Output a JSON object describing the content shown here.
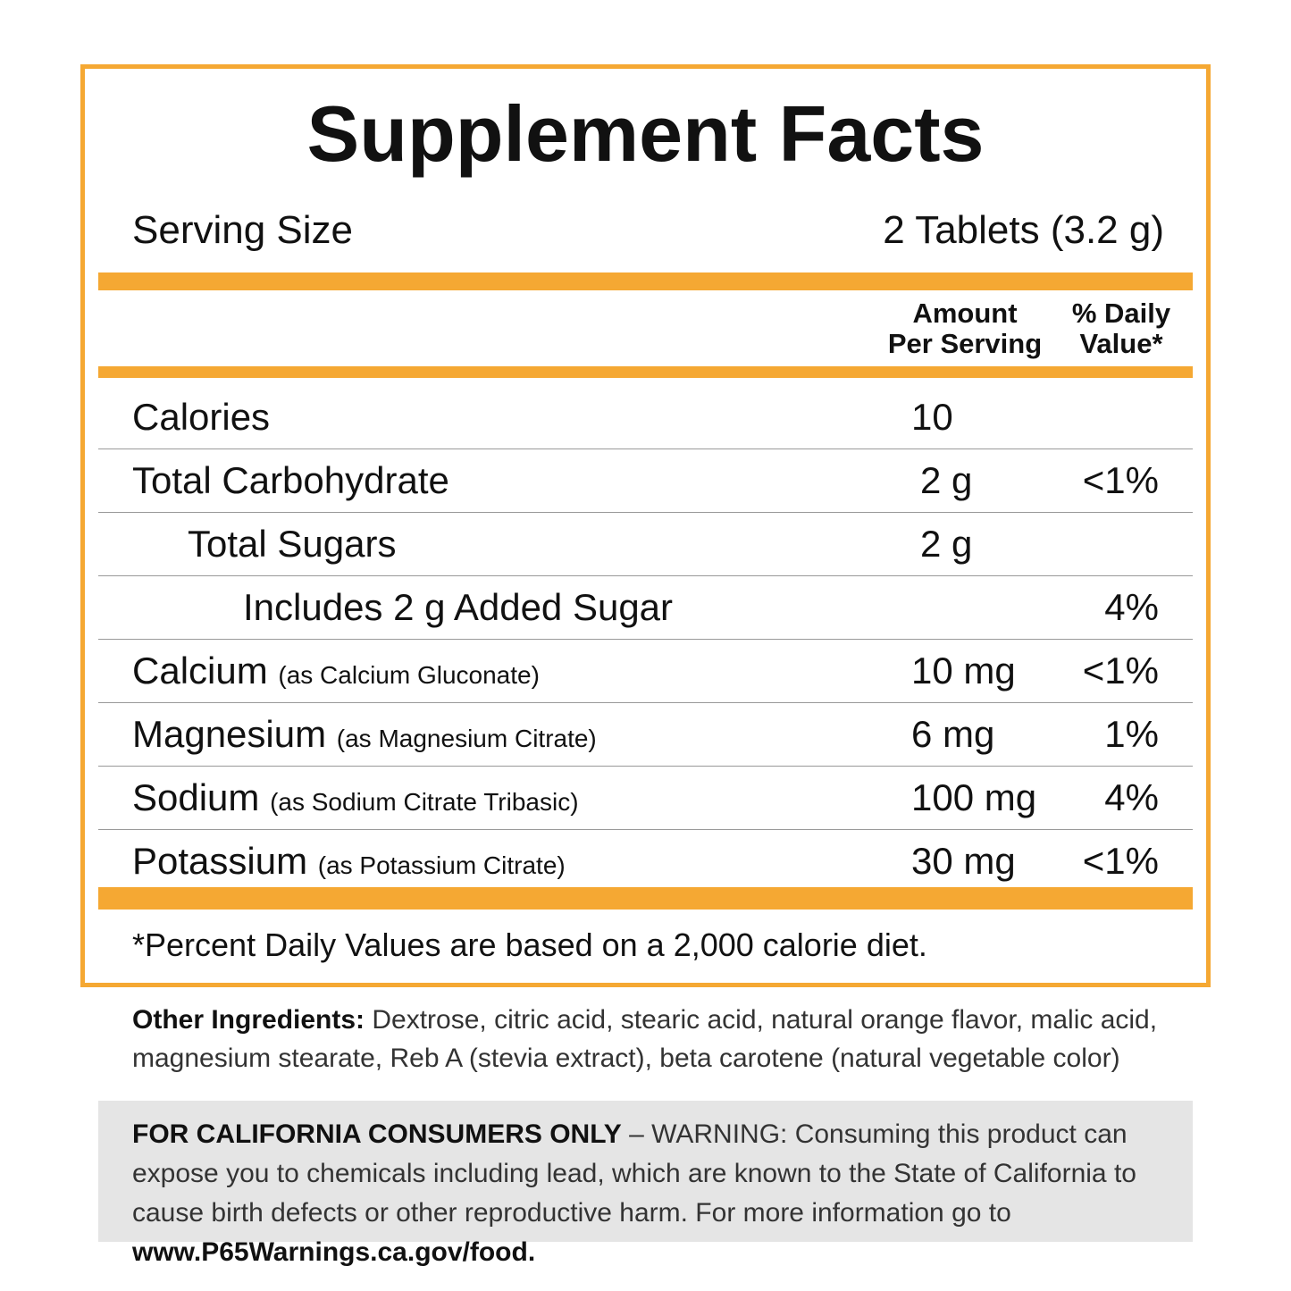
{
  "title": "Supplement Facts",
  "serving": {
    "label": "Serving Size",
    "value": "2 Tablets (3.2 g)"
  },
  "header": {
    "amount": [
      "Amount",
      "Per Serving"
    ],
    "daily_value": [
      "% Daily",
      "Value*"
    ]
  },
  "rows": [
    {
      "name": "Calories",
      "amount": "10"
    },
    {
      "name": "Total Carbohydrate",
      "amount": "2 g",
      "dv": "<1%"
    },
    {
      "name": "Total Sugars",
      "amount": "2 g"
    },
    {
      "name": "Includes 2 g Added Sugar",
      "dv": "4%"
    },
    {
      "name": "Calcium",
      "source": "(as Calcium Gluconate)",
      "amount": "10 mg",
      "dv": "<1%"
    },
    {
      "name": "Magnesium",
      "source": "(as Magnesium Citrate)",
      "amount": "6 mg",
      "dv": "1%"
    },
    {
      "name": "Sodium",
      "source": "(as Sodium Citrate Tribasic)",
      "amount": "100 mg",
      "dv": "4%"
    },
    {
      "name": "Potassium",
      "source": "(as Potassium Citrate)",
      "amount": "30 mg",
      "dv": "<1%"
    }
  ],
  "footnote": "*Percent Daily Values are based on a 2,000 calorie diet.",
  "other_ingredients": {
    "label": "Other Ingredients:",
    "text": "Dextrose, citric acid, stearic acid, natural orange flavor, malic acid, magnesium stearate, Reb A (stevia extract), beta carotene (natural vegetable color)"
  },
  "warning": {
    "lead": "FOR CALIFORNIA CONSUMERS ONLY",
    "text": "– WARNING: Consuming this product can expose you to chemicals including lead, which are known to the State of California to cause birth defects or other reproductive harm. For more information go to",
    "link": "www.P65Warnings.ca.gov/food."
  }
}
